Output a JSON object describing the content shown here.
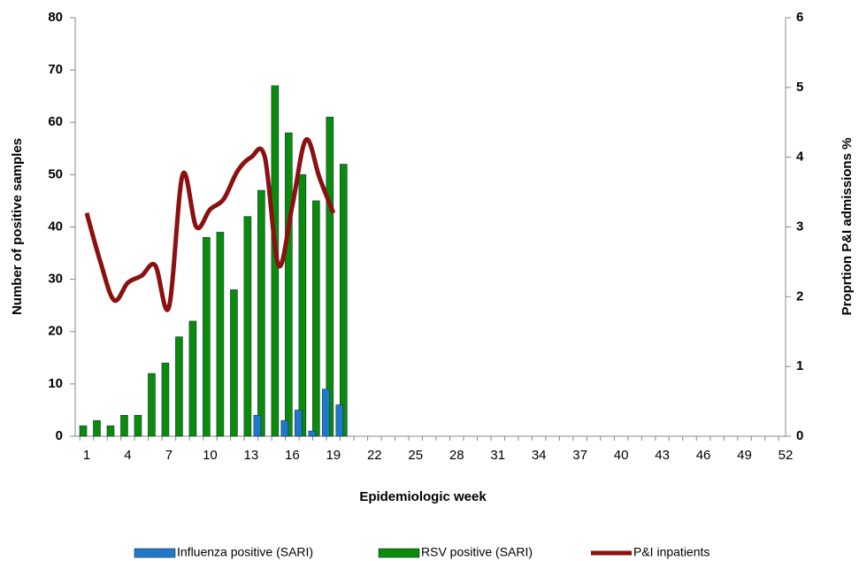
{
  "chart_data": {
    "type": "bar",
    "xlabel": "Epidemiologic week",
    "ylabel": "Number of positive samples",
    "y2label": "Proprtion P&I admissions %",
    "categories": [
      "1",
      null,
      null,
      "4",
      null,
      null,
      "7",
      null,
      null,
      "10",
      null,
      null,
      "13",
      null,
      null,
      "16",
      null,
      null,
      "19",
      null,
      null,
      "22",
      null,
      null,
      "25",
      null,
      null,
      "28",
      null,
      null,
      "31",
      null,
      null,
      "34",
      null,
      null,
      "37",
      null,
      null,
      "40",
      null,
      null,
      "43",
      null,
      null,
      "46",
      null,
      null,
      "49",
      null,
      null,
      "52"
    ],
    "ylim": [
      0,
      80
    ],
    "yticks": [
      0,
      10,
      20,
      30,
      40,
      50,
      60,
      70,
      80
    ],
    "y2lim": [
      0,
      6
    ],
    "y2ticks": [
      0,
      1,
      2,
      3,
      4,
      5,
      6
    ],
    "legend": "bottom",
    "series": [
      {
        "name": "Influenza positive (SARI)",
        "color": "#1f78c8",
        "type": "bar",
        "values": [
          null,
          null,
          null,
          null,
          null,
          null,
          null,
          null,
          null,
          null,
          null,
          null,
          4,
          null,
          3,
          5,
          1,
          9,
          6,
          null,
          null,
          null,
          null,
          null,
          null,
          null,
          null,
          null,
          null,
          null,
          null,
          null,
          null,
          null,
          null,
          null,
          null,
          null,
          null,
          null,
          null,
          null,
          null,
          null,
          null,
          null,
          null,
          null,
          null,
          null,
          null,
          null
        ]
      },
      {
        "name": "RSV positive (SARI)",
        "color": "#0a8c0a",
        "type": "bar",
        "values": [
          2,
          3,
          2,
          4,
          4,
          12,
          14,
          19,
          22,
          38,
          39,
          28,
          42,
          47,
          67,
          58,
          50,
          45,
          61,
          52,
          null,
          null,
          null,
          null,
          null,
          null,
          null,
          null,
          null,
          null,
          null,
          null,
          null,
          null,
          null,
          null,
          null,
          null,
          null,
          null,
          null,
          null,
          null,
          null,
          null,
          null,
          null,
          null,
          null,
          null,
          null,
          null
        ]
      },
      {
        "name": "P&I inpatients",
        "color": "#8b1010",
        "type": "line",
        "axis": "y2",
        "values": [
          3.2,
          2.5,
          1.95,
          2.2,
          2.3,
          2.45,
          1.85,
          3.75,
          3.0,
          3.25,
          3.4,
          3.8,
          4.0,
          4.0,
          2.45,
          3.3,
          4.25,
          3.7,
          3.2,
          null,
          null,
          null,
          null,
          null,
          null,
          null,
          null,
          null,
          null,
          null,
          null,
          null,
          null,
          null,
          null,
          null,
          null,
          null,
          null,
          null,
          null,
          null,
          null,
          null,
          null,
          null,
          null,
          null,
          null,
          null,
          null,
          null
        ]
      }
    ]
  }
}
